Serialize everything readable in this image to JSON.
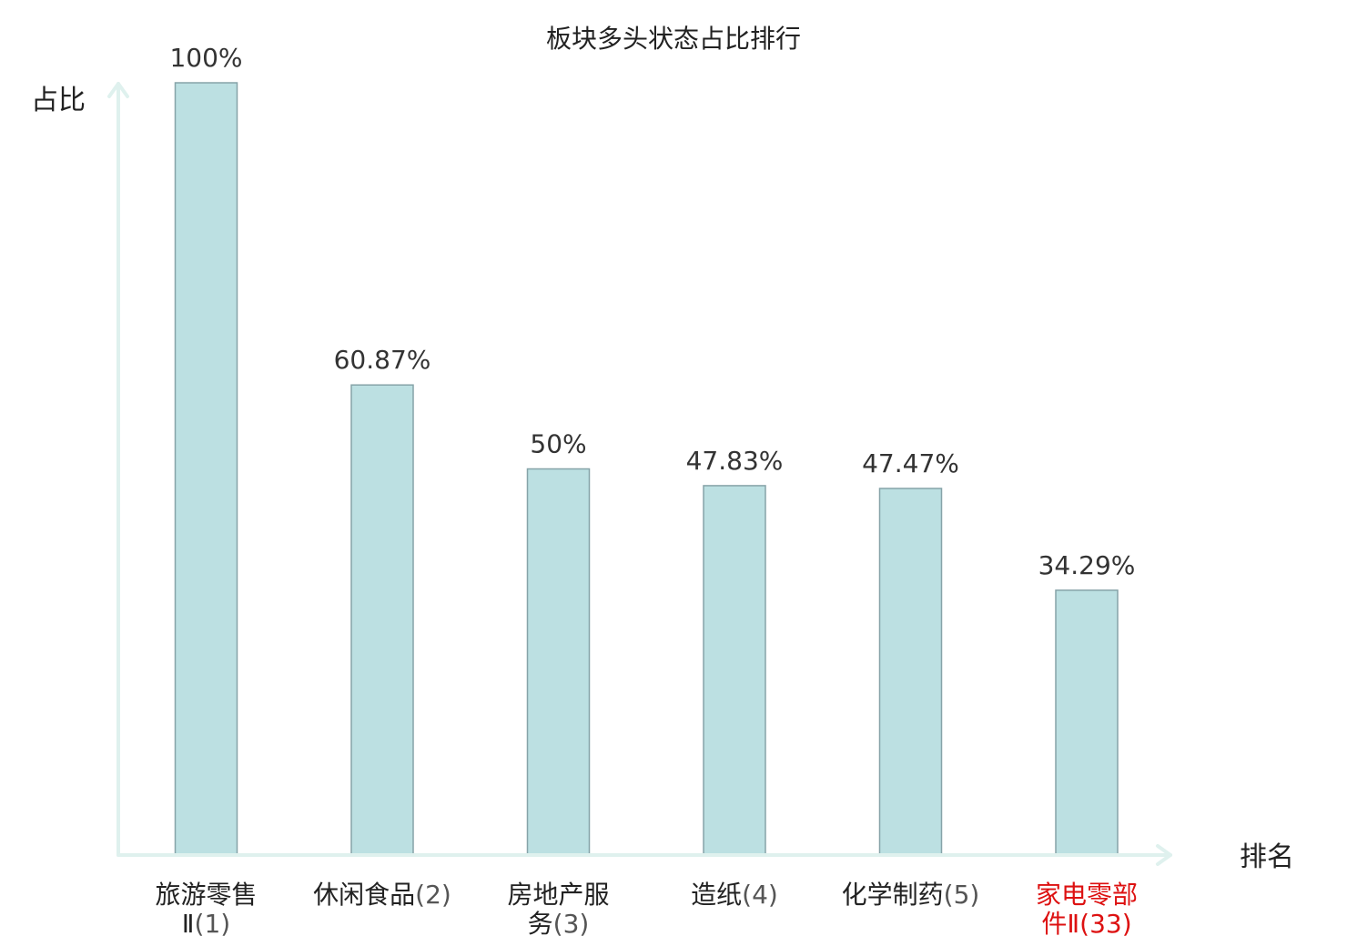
{
  "chart_data": {
    "type": "bar",
    "title": "板块多头状态占比排行",
    "ylabel": "占比",
    "xlabel": "排名",
    "ylim": [
      0,
      100
    ],
    "grid": false,
    "legend": "none",
    "categories": [
      {
        "name_lines": [
          "旅游零售",
          "Ⅱ"
        ],
        "rank": "(1)",
        "highlight": false
      },
      {
        "name_lines": [
          "休闲食品"
        ],
        "rank": "(2)",
        "highlight": false
      },
      {
        "name_lines": [
          "房地产服",
          "务"
        ],
        "rank": "(3)",
        "highlight": false
      },
      {
        "name_lines": [
          "造纸"
        ],
        "rank": "(4)",
        "highlight": false
      },
      {
        "name_lines": [
          "化学制药"
        ],
        "rank": "(5)",
        "highlight": false
      },
      {
        "name_lines": [
          "家电零部",
          "件Ⅱ"
        ],
        "rank": "(33)",
        "highlight": true
      }
    ],
    "values": [
      100,
      60.87,
      50,
      47.83,
      47.47,
      34.29
    ],
    "value_labels": [
      "100%",
      "60.87%",
      "50%",
      "47.83%",
      "47.47%",
      "34.29%"
    ],
    "colors": {
      "bar_fill": "#bce0e2",
      "bar_stroke": "#86a3a8",
      "axis": "#dff1ee",
      "highlight": "#dd1111"
    }
  }
}
